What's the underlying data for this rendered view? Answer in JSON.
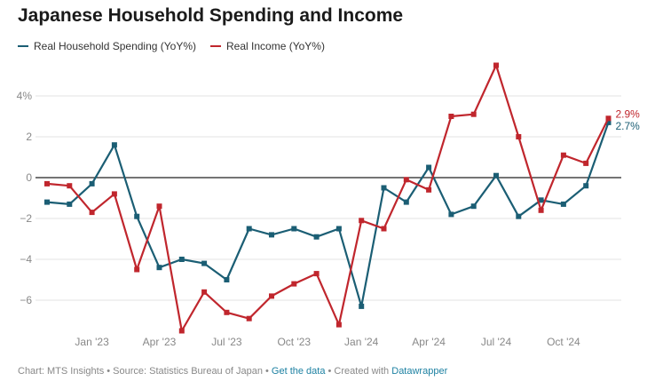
{
  "title": "Japanese Household Spending and Income",
  "legend": {
    "spending": "Real Household Spending (YoY%)",
    "income": "Real Income (YoY%)"
  },
  "footer": {
    "chart": "Chart: MTS Insights",
    "source": "Source: Statistics Bureau of Japan",
    "get_data": "Get the data",
    "created": "Created with",
    "tool": "Datawrapper"
  },
  "chart_data": {
    "type": "line",
    "x": [
      "2022-11",
      "2022-12",
      "2023-01",
      "2023-02",
      "2023-03",
      "2023-04",
      "2023-05",
      "2023-06",
      "2023-07",
      "2023-08",
      "2023-09",
      "2023-10",
      "2023-11",
      "2023-12",
      "2024-01",
      "2024-02",
      "2024-03",
      "2024-04",
      "2024-05",
      "2024-06",
      "2024-07",
      "2024-08",
      "2024-09",
      "2024-10",
      "2024-11",
      "2024-12"
    ],
    "x_tick_labels": [
      "Jan '23",
      "Apr '23",
      "Jul '23",
      "Oct '23",
      "Jan '24",
      "Apr '24",
      "Jul '24",
      "Oct '24"
    ],
    "y_tick_labels": [
      "4%",
      "2",
      "0",
      "−2",
      "−4",
      "−6"
    ],
    "y_ticks": [
      4,
      2,
      0,
      -2,
      -4,
      -6
    ],
    "ylim": [
      -7.6,
      5.4
    ],
    "grid": true,
    "legend_position": "top-left",
    "series": [
      {
        "name": "Real Household Spending (YoY%)",
        "color": "#1b5e74",
        "end_label": "2.7%",
        "values": [
          -1.2,
          -1.3,
          -0.3,
          1.6,
          -1.9,
          -4.4,
          -4.0,
          -4.2,
          -5.0,
          -2.5,
          -2.8,
          -2.5,
          -2.9,
          -2.5,
          -6.3,
          -0.5,
          -1.2,
          0.5,
          -1.8,
          -1.4,
          0.1,
          -1.9,
          -1.1,
          -1.3,
          -0.4,
          2.7
        ]
      },
      {
        "name": "Real Income (YoY%)",
        "color": "#c0262d",
        "end_label": "2.9%",
        "values": [
          -0.3,
          -0.4,
          -1.7,
          -0.8,
          -4.5,
          -1.4,
          -7.5,
          -5.6,
          -6.6,
          -6.9,
          -5.8,
          -5.2,
          -4.7,
          -7.2,
          -2.1,
          -2.5,
          -0.1,
          -0.6,
          3.0,
          3.1,
          5.5,
          2.0,
          -1.6,
          1.1,
          0.7,
          2.9
        ]
      }
    ]
  }
}
